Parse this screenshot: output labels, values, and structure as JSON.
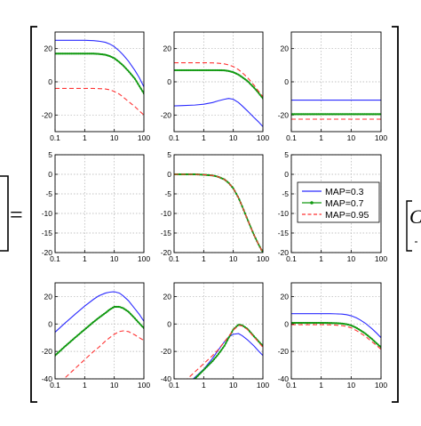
{
  "equals_sign": "=",
  "right_fragment": "C",
  "colors": {
    "map_0_3": "#2b2bff",
    "map_0_7": "#119911",
    "map_0_95": "#ff3333",
    "grid": "#b0b0b0"
  },
  "chart_data": {
    "type": "line",
    "xscale": "log",
    "xlim": [
      0.1,
      100
    ],
    "xticks": [
      "0.1",
      "1",
      "10",
      "100"
    ],
    "grid": true,
    "legend": {
      "placement": "top-right",
      "panel": 5,
      "entries": [
        {
          "label": "MAP=0.3",
          "style": "solid",
          "color": "#2b2bff"
        },
        {
          "label": "MAP=0.7",
          "style": "solid-dot",
          "color": "#119911"
        },
        {
          "label": "MAP=0.95",
          "style": "dashed",
          "color": "#ff3333"
        }
      ]
    },
    "x": [
      0.1,
      0.2,
      0.5,
      1,
      2,
      3,
      5,
      7,
      10,
      15,
      20,
      30,
      50,
      70,
      100
    ],
    "panels": [
      {
        "id": "p11",
        "ylim": [
          -30,
          30
        ],
        "yticks": [
          "20",
          "0",
          "-20"
        ],
        "series": [
          {
            "key": "MAP=0.3",
            "values": [
              25,
              25,
              25,
              25,
              24.8,
              24.5,
              23.8,
              22.8,
              21.2,
              18.5,
              16.2,
              12.5,
              6.8,
              2.5,
              -3
            ]
          },
          {
            "key": "MAP=0.7",
            "values": [
              17,
              17,
              17,
              17,
              17,
              16.8,
              16.3,
              15.5,
              14.2,
              11.8,
              9.8,
              6.5,
              1.8,
              -2.5,
              -7
            ]
          },
          {
            "key": "MAP=0.95",
            "values": [
              -4,
              -4,
              -4,
              -4,
              -4,
              -4.1,
              -4.3,
              -4.8,
              -5.8,
              -7.5,
              -9.2,
              -11.8,
              -15,
              -17.5,
              -20
            ]
          }
        ]
      },
      {
        "id": "p12",
        "ylim": [
          -30,
          30
        ],
        "yticks": [
          "20",
          "0",
          "-20"
        ],
        "series": [
          {
            "key": "MAP=0.3",
            "values": [
              -14.5,
              -14.3,
              -14,
              -13.5,
              -12.5,
              -11.5,
              -10.5,
              -10,
              -10.5,
              -12.5,
              -14.5,
              -17.5,
              -21.5,
              -24,
              -27
            ]
          },
          {
            "key": "MAP=0.7",
            "values": [
              7,
              7,
              7,
              7,
              7,
              7,
              6.9,
              6.5,
              5.8,
              4.3,
              2.8,
              0.5,
              -3.5,
              -6.5,
              -10
            ]
          },
          {
            "key": "MAP=0.95",
            "values": [
              11.5,
              11.5,
              11.5,
              11.5,
              11.4,
              11.2,
              10.8,
              10.2,
              9.2,
              7.3,
              5.5,
              2.6,
              -2,
              -5.5,
              -9
            ]
          }
        ]
      },
      {
        "id": "p13",
        "ylim": [
          -30,
          30
        ],
        "yticks": [
          "20",
          "0",
          "-20"
        ],
        "series": [
          {
            "key": "MAP=0.3",
            "values": [
              -11,
              -11,
              -11,
              -11,
              -11,
              -11,
              -11,
              -11,
              -11,
              -11,
              -11,
              -11,
              -11,
              -11,
              -11
            ]
          },
          {
            "key": "MAP=0.7",
            "values": [
              -19.5,
              -19.5,
              -19.5,
              -19.5,
              -19.5,
              -19.5,
              -19.5,
              -19.5,
              -19.5,
              -19.5,
              -19.5,
              -19.5,
              -19.5,
              -19.5,
              -19.5
            ]
          },
          {
            "key": "MAP=0.95",
            "values": [
              -22.5,
              -22.5,
              -22.5,
              -22.5,
              -22.5,
              -22.5,
              -22.5,
              -22.5,
              -22.5,
              -22.5,
              -22.5,
              -22.5,
              -22.5,
              -22.5,
              -22.5
            ]
          }
        ]
      },
      {
        "id": "p21",
        "ylim": [
          -20,
          5
        ],
        "yticks": [
          "5",
          "0",
          "-5",
          "-10",
          "-15",
          "-20"
        ],
        "series": []
      },
      {
        "id": "p22",
        "ylim": [
          -20,
          5
        ],
        "yticks": [
          "5",
          "0",
          "-5",
          "-10",
          "-15",
          "-20"
        ],
        "series": [
          {
            "key": "MAP=0.3",
            "values": [
              0,
              0,
              0,
              -0.1,
              -0.3,
              -0.6,
              -1.3,
              -2.2,
              -3.6,
              -6,
              -8.2,
              -11.5,
              -15.5,
              -17.8,
              -20
            ]
          },
          {
            "key": "MAP=0.7",
            "values": [
              0,
              0,
              0,
              -0.1,
              -0.3,
              -0.6,
              -1.3,
              -2.2,
              -3.6,
              -6,
              -8.2,
              -11.5,
              -15.5,
              -17.8,
              -20
            ]
          },
          {
            "key": "MAP=0.95",
            "values": [
              0,
              0,
              0,
              -0.1,
              -0.3,
              -0.6,
              -1.3,
              -2.2,
              -3.6,
              -6,
              -8.2,
              -11.5,
              -15.5,
              -17.8,
              -20
            ]
          }
        ]
      },
      {
        "id": "p23",
        "ylim": [
          -20,
          5
        ],
        "yticks": [
          "5",
          "0",
          "-5",
          "-10",
          "-15",
          "-20"
        ],
        "series": []
      },
      {
        "id": "p31",
        "ylim": [
          -40,
          30
        ],
        "yticks": [
          "20",
          "0",
          "-20",
          "-40"
        ],
        "series": [
          {
            "key": "MAP=0.3",
            "values": [
              -6,
              0,
              7.5,
              13,
              18,
              20.5,
              22.5,
              23.2,
              23.5,
              22.5,
              20.5,
              17,
              11,
              7,
              2
            ]
          },
          {
            "key": "MAP=0.7",
            "values": [
              -23,
              -17,
              -9.5,
              -4,
              1.5,
              4.5,
              8,
              10.5,
              12.5,
              12.5,
              11.5,
              9,
              4,
              0.5,
              -3
            ]
          },
          {
            "key": "MAP=0.95",
            "values": [
              -46,
              -40,
              -32,
              -26,
              -20,
              -17,
              -12.5,
              -10,
              -7.5,
              -5.5,
              -5,
              -5.5,
              -8,
              -10,
              -12
            ]
          }
        ]
      },
      {
        "id": "p32",
        "ylim": [
          -40,
          30
        ],
        "yticks": [
          "20",
          "0",
          "-20",
          "-40"
        ],
        "series": [
          {
            "key": "MAP=0.3",
            "values": [
              -53,
              -47,
              -39,
              -33,
              -25,
              -19.5,
              -13,
              -9.5,
              -7.5,
              -7,
              -8.5,
              -11.5,
              -16,
              -19.5,
              -23
            ]
          },
          {
            "key": "MAP=0.7",
            "values": [
              -54,
              -48,
              -40,
              -33.5,
              -27,
              -22.5,
              -16,
              -10,
              -4,
              -0.5,
              -1,
              -3.5,
              -9,
              -12.5,
              -16
            ]
          },
          {
            "key": "MAP=0.95",
            "values": [
              -49,
              -43,
              -35,
              -29,
              -23,
              -19,
              -13,
              -9,
              -4.5,
              -1,
              -1.5,
              -4,
              -9.5,
              -13,
              -17
            ]
          }
        ]
      },
      {
        "id": "p33",
        "ylim": [
          -40,
          30
        ],
        "yticks": [
          "20",
          "0",
          "-20",
          "-40"
        ],
        "series": [
          {
            "key": "MAP=0.3",
            "values": [
              7.5,
              7.5,
              7.5,
              7.5,
              7.5,
              7.4,
              7.2,
              6.8,
              6,
              4.5,
              3,
              0.5,
              -3.5,
              -6.5,
              -10
            ]
          },
          {
            "key": "MAP=0.7",
            "values": [
              0.8,
              0.8,
              0.8,
              0.8,
              0.7,
              0.6,
              0.3,
              -0.2,
              -1,
              -2.8,
              -4.5,
              -7,
              -11,
              -14,
              -17
            ]
          },
          {
            "key": "MAP=0.95",
            "values": [
              -0.5,
              -0.5,
              -0.5,
              -0.5,
              -0.6,
              -0.8,
              -1.2,
              -1.8,
              -2.8,
              -4.8,
              -6.5,
              -9,
              -13,
              -15.5,
              -18.5
            ]
          }
        ]
      }
    ]
  }
}
